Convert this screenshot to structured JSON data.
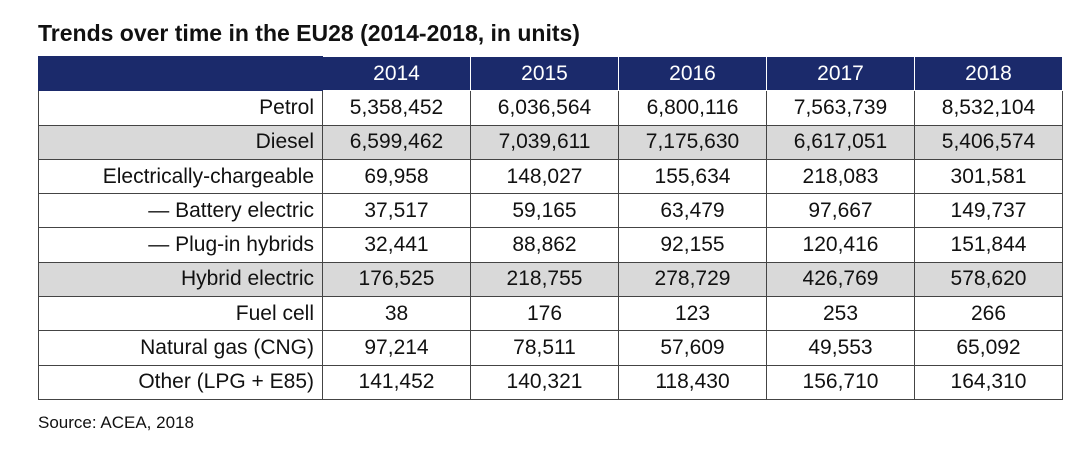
{
  "title": "Trends over time in the EU28 (2014-2018, in units)",
  "table": {
    "columns": [
      "2014",
      "2015",
      "2016",
      "2017",
      "2018"
    ],
    "rows": [
      [
        "Petrol",
        "5,358,452",
        "6,036,564",
        "6,800,116",
        "7,563,739",
        "8,532,104"
      ],
      [
        "Diesel",
        "6,599,462",
        "7,039,611",
        "7,175,630",
        "6,617,051",
        "5,406,574"
      ],
      [
        "Electrically-chargeable",
        "69,958",
        "148,027",
        "155,634",
        "218,083",
        "301,581"
      ],
      [
        "— Battery electric",
        "37,517",
        "59,165",
        "63,479",
        "97,667",
        "149,737"
      ],
      [
        "— Plug-in hybrids",
        "32,441",
        "88,862",
        "92,155",
        "120,416",
        "151,844"
      ],
      [
        "Hybrid electric",
        "176,525",
        "218,755",
        "278,729",
        "426,769",
        "578,620"
      ],
      [
        "Fuel cell",
        "38",
        "176",
        "123",
        "253",
        "266"
      ],
      [
        "Natural gas (CNG)",
        "97,214",
        "78,511",
        "57,609",
        "49,553",
        "65,092"
      ],
      [
        "Other (LPG + E85)",
        "141,452",
        "140,321",
        "118,430",
        "156,710",
        "164,310"
      ]
    ],
    "shaded_rows": [
      1,
      5
    ]
  },
  "source": "Source: ACEA, 2018"
}
